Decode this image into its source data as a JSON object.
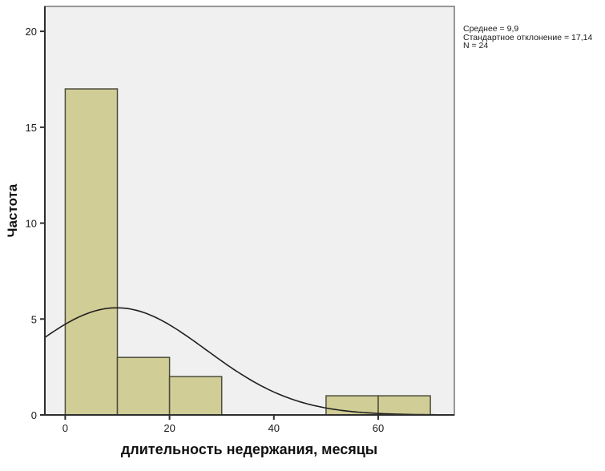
{
  "chart_data": {
    "type": "bar",
    "subtype": "histogram-with-normal-curve",
    "xlabel": "длительность недержания, месяцы",
    "ylabel": "Частота",
    "bin_width": 10,
    "bins": [
      {
        "x0": 0,
        "x1": 10,
        "count": 17
      },
      {
        "x0": 10,
        "x1": 20,
        "count": 3
      },
      {
        "x0": 20,
        "x1": 30,
        "count": 2
      },
      {
        "x0": 30,
        "x1": 40,
        "count": 0
      },
      {
        "x0": 40,
        "x1": 50,
        "count": 0
      },
      {
        "x0": 50,
        "x1": 60,
        "count": 1
      },
      {
        "x0": 60,
        "x1": 70,
        "count": 1
      }
    ],
    "normal_curve": {
      "mean": 9.9,
      "sd": 17.14,
      "n": 24
    },
    "x_ticks": [
      "0",
      "20",
      "40",
      "60"
    ],
    "x_tick_values": [
      0,
      20,
      40,
      60
    ],
    "y_ticks": [
      "0",
      "5",
      "10",
      "15",
      "20"
    ],
    "y_tick_values": [
      0,
      5,
      10,
      15,
      20
    ],
    "xlim": [
      -3.9,
      74.6
    ],
    "ylim": [
      0,
      21.3
    ],
    "grid": false,
    "legend": "none",
    "stats_box": {
      "mean_line": "Среднее = 9,9",
      "sd_line": "Стандартное отклонение = 17,14",
      "n_line": "N = 24"
    },
    "colors": {
      "bar_fill": "#d1cd96",
      "bar_border": "#4d4d3f",
      "curve": "#1f1f1f",
      "plot_bg": "#f0f0f0",
      "frame_border": "#777777",
      "axis": "#2e2e2e",
      "page_bg": "#ffffff"
    }
  }
}
